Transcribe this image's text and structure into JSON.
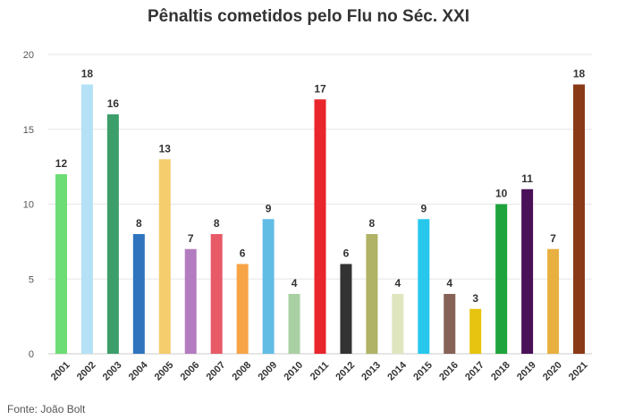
{
  "chart_data": {
    "type": "bar",
    "title": "Pênaltis cometidos pelo Flu no Séc. XXI",
    "xlabel": "",
    "ylabel": "",
    "ylim": [
      0,
      20
    ],
    "yticks": [
      "0",
      "5",
      "10",
      "15",
      "20"
    ],
    "grid": true,
    "legend": "none",
    "categories": [
      "2001",
      "2002",
      "2003",
      "2004",
      "2005",
      "2006",
      "2007",
      "2008",
      "2009",
      "2010",
      "2011",
      "2012",
      "2013",
      "2014",
      "2015",
      "2016",
      "2017",
      "2018",
      "2019",
      "2020",
      "2021"
    ],
    "values": [
      12,
      18,
      16,
      8,
      13,
      7,
      8,
      6,
      9,
      4,
      17,
      6,
      8,
      4,
      9,
      4,
      3,
      10,
      11,
      7,
      18
    ],
    "colors": [
      "#6cdc74",
      "#b4e1f6",
      "#3c9e6a",
      "#2f74bd",
      "#f5cd6c",
      "#b47cc0",
      "#e85a68",
      "#f7a447",
      "#62bde5",
      "#a8d0a2",
      "#e8262c",
      "#333333",
      "#b0b266",
      "#dfe6bf",
      "#27c8ec",
      "#876257",
      "#e6c40f",
      "#1fa33c",
      "#4a1058",
      "#e8b041",
      "#8b3a17"
    ]
  },
  "source": "Fonte: João Bolt"
}
